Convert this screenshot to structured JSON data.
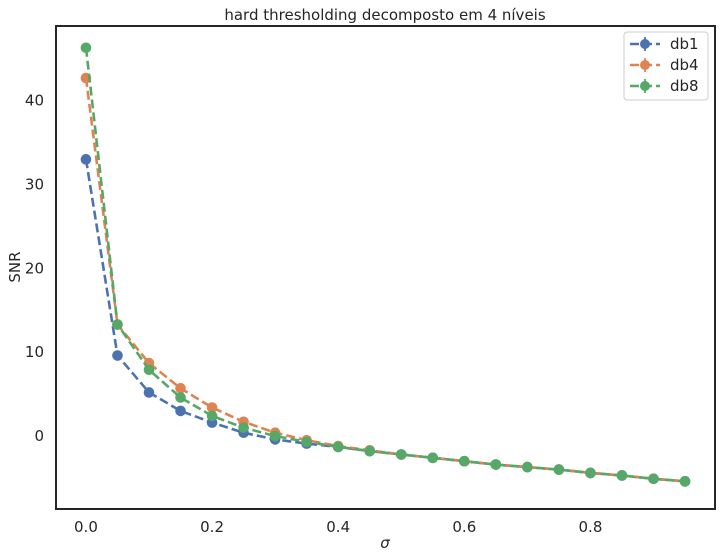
{
  "chart_data": {
    "type": "line",
    "title": "hard thresholding decomposto em 4 níveis",
    "xlabel": "σ",
    "ylabel": "SNR",
    "xlim": [
      -0.0475,
      0.9975
    ],
    "ylim": [
      -8.7,
      48.9
    ],
    "xticks": [
      0.0,
      0.2,
      0.4,
      0.6,
      0.8
    ],
    "xtick_labels": [
      "0.0",
      "0.2",
      "0.4",
      "0.6",
      "0.8"
    ],
    "yticks": [
      0,
      10,
      20,
      30,
      40
    ],
    "ytick_labels": [
      "0",
      "10",
      "20",
      "30",
      "40"
    ],
    "grid": false,
    "legend_position": "top-right",
    "x": [
      0.0,
      0.05,
      0.1,
      0.15,
      0.2,
      0.25,
      0.3,
      0.35,
      0.4,
      0.45,
      0.5,
      0.55,
      0.6,
      0.65,
      0.7,
      0.75,
      0.8,
      0.85,
      0.9,
      0.95
    ],
    "series": [
      {
        "name": "db1",
        "color": "#4c72b0",
        "values": [
          33.0,
          9.6,
          5.2,
          3.0,
          1.6,
          0.4,
          -0.4,
          -0.9,
          -1.3,
          -1.8,
          -2.2,
          -2.6,
          -3.0,
          -3.4,
          -3.7,
          -4.0,
          -4.4,
          -4.7,
          -5.1,
          -5.4
        ]
      },
      {
        "name": "db4",
        "color": "#dd8452",
        "values": [
          42.7,
          13.3,
          8.7,
          5.7,
          3.4,
          1.7,
          0.4,
          -0.5,
          -1.2,
          -1.7,
          -2.2,
          -2.6,
          -3.0,
          -3.4,
          -3.7,
          -4.0,
          -4.4,
          -4.7,
          -5.1,
          -5.4
        ]
      },
      {
        "name": "db8",
        "color": "#55a868",
        "values": [
          46.3,
          13.3,
          7.9,
          4.6,
          2.4,
          1.0,
          0.0,
          -0.7,
          -1.3,
          -1.8,
          -2.2,
          -2.6,
          -3.0,
          -3.4,
          -3.7,
          -4.0,
          -4.4,
          -4.7,
          -5.1,
          -5.4
        ]
      }
    ]
  }
}
